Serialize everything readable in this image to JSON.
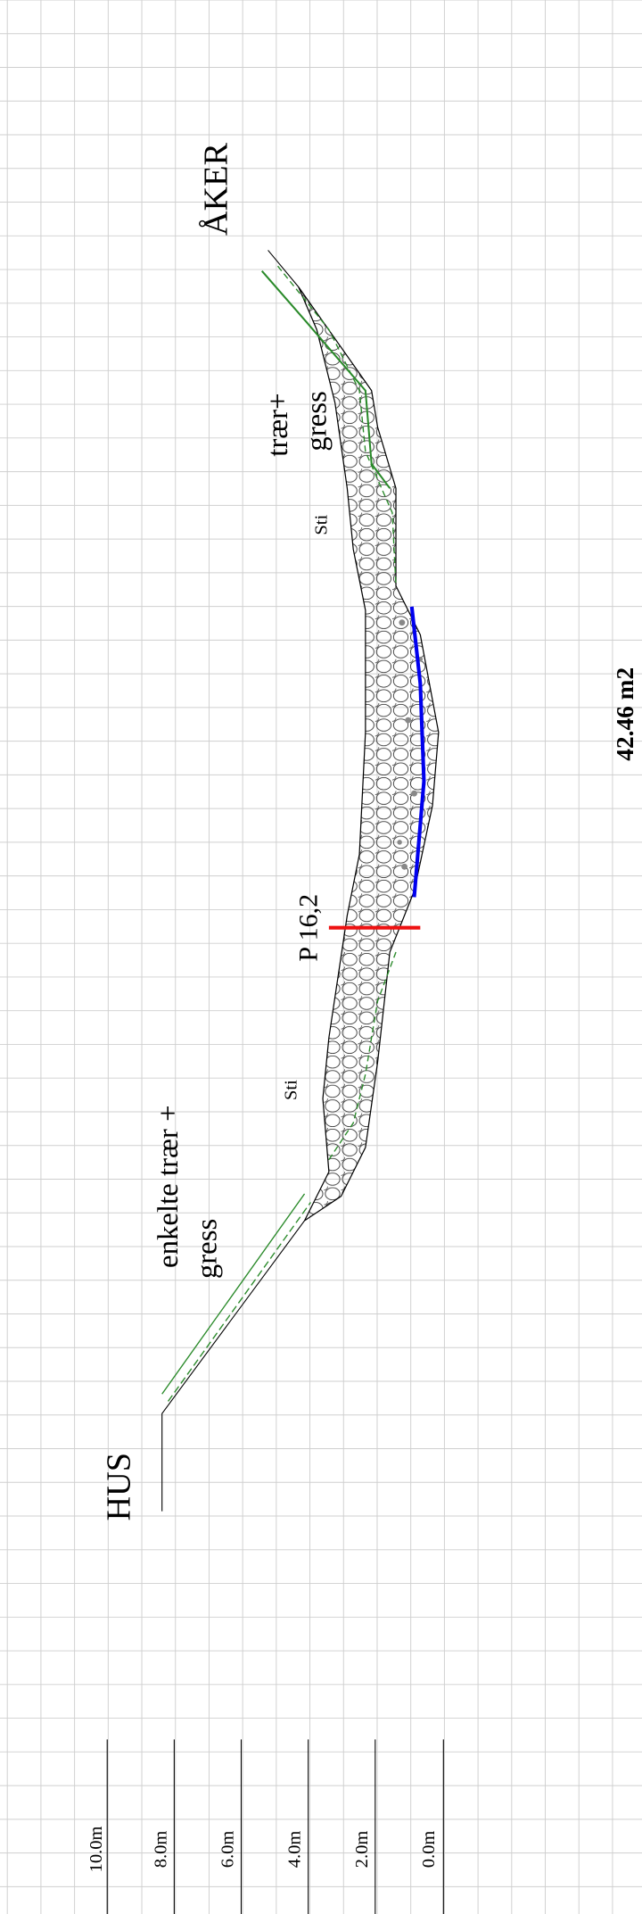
{
  "labels": {
    "aker": "ÅKER",
    "traer": "trær+",
    "gress_right": "gress",
    "sti_right": "Sti",
    "profile": "P 16,2",
    "sti_left": "Sti",
    "enkelte": "enkelte trær +",
    "gress_left": "gress",
    "hus": "HUS",
    "area": "42.46 m2"
  },
  "scale": [
    "10.0m",
    "8.0m",
    "6.0m",
    "4.0m",
    "2.0m",
    "0.0m"
  ]
}
